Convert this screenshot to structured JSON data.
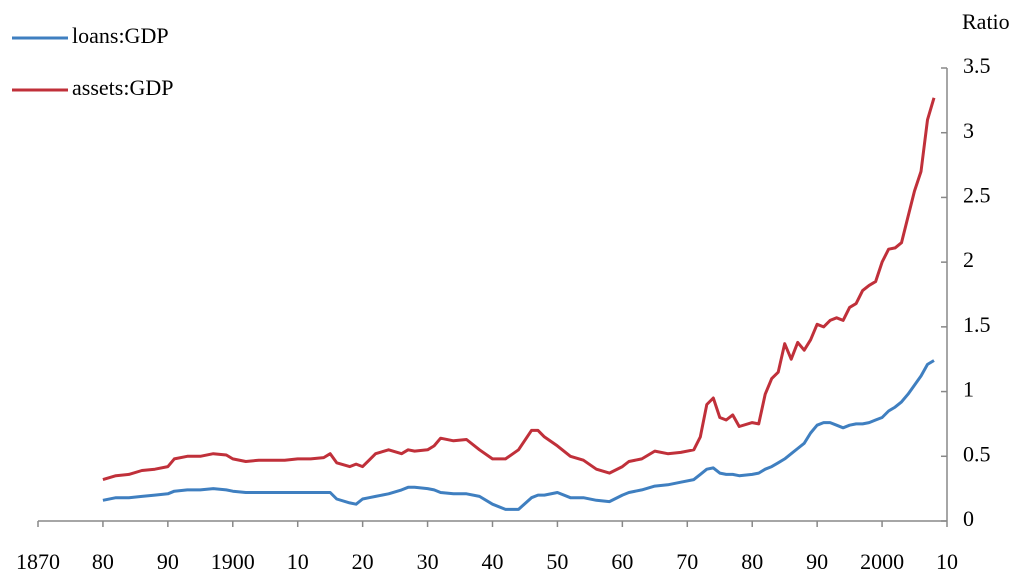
{
  "chart_data": {
    "type": "line",
    "y_axis_label": "Ratio",
    "legend": "top-left",
    "x": [
      1880,
      1882,
      1884,
      1886,
      1888,
      1890,
      1891,
      1893,
      1895,
      1897,
      1899,
      1900,
      1902,
      1904,
      1906,
      1908,
      1910,
      1912,
      1914,
      1915,
      1916,
      1918,
      1919,
      1920,
      1921,
      1922,
      1924,
      1926,
      1927,
      1928,
      1930,
      1931,
      1932,
      1934,
      1936,
      1938,
      1940,
      1942,
      1944,
      1946,
      1947,
      1948,
      1950,
      1952,
      1954,
      1956,
      1958,
      1960,
      1961,
      1963,
      1965,
      1967,
      1969,
      1971,
      1972,
      1973,
      1974,
      1975,
      1976,
      1977,
      1978,
      1980,
      1981,
      1982,
      1983,
      1984,
      1985,
      1986,
      1987,
      1988,
      1989,
      1990,
      1991,
      1992,
      1993,
      1994,
      1995,
      1996,
      1997,
      1998,
      1999,
      2000,
      2001,
      2002,
      2003,
      2004,
      2005,
      2006,
      2007,
      2008
    ],
    "series": [
      {
        "name": "loans:GDP",
        "color": "#3f7fc0",
        "values": [
          0.16,
          0.18,
          0.18,
          0.19,
          0.2,
          0.21,
          0.23,
          0.24,
          0.24,
          0.25,
          0.24,
          0.23,
          0.22,
          0.22,
          0.22,
          0.22,
          0.22,
          0.22,
          0.22,
          0.22,
          0.17,
          0.14,
          0.13,
          0.17,
          0.18,
          0.19,
          0.21,
          0.24,
          0.26,
          0.26,
          0.25,
          0.24,
          0.22,
          0.21,
          0.21,
          0.19,
          0.13,
          0.09,
          0.09,
          0.18,
          0.2,
          0.2,
          0.22,
          0.18,
          0.18,
          0.16,
          0.15,
          0.2,
          0.22,
          0.24,
          0.27,
          0.28,
          0.3,
          0.32,
          0.36,
          0.4,
          0.41,
          0.37,
          0.36,
          0.36,
          0.35,
          0.36,
          0.37,
          0.4,
          0.42,
          0.45,
          0.48,
          0.52,
          0.56,
          0.6,
          0.68,
          0.74,
          0.76,
          0.76,
          0.74,
          0.72,
          0.74,
          0.75,
          0.75,
          0.76,
          0.78,
          0.8,
          0.85,
          0.88,
          0.92,
          0.98,
          1.05,
          1.12,
          1.21,
          1.24
        ]
      },
      {
        "name": "assets:GDP",
        "color": "#c0303a",
        "values": [
          0.32,
          0.35,
          0.36,
          0.39,
          0.4,
          0.42,
          0.48,
          0.5,
          0.5,
          0.52,
          0.51,
          0.48,
          0.46,
          0.47,
          0.47,
          0.47,
          0.48,
          0.48,
          0.49,
          0.52,
          0.45,
          0.42,
          0.44,
          0.42,
          0.47,
          0.52,
          0.55,
          0.52,
          0.55,
          0.54,
          0.55,
          0.58,
          0.64,
          0.62,
          0.63,
          0.55,
          0.48,
          0.48,
          0.55,
          0.7,
          0.7,
          0.65,
          0.58,
          0.5,
          0.47,
          0.4,
          0.37,
          0.42,
          0.46,
          0.48,
          0.54,
          0.52,
          0.53,
          0.55,
          0.65,
          0.9,
          0.95,
          0.8,
          0.78,
          0.82,
          0.73,
          0.76,
          0.75,
          0.98,
          1.1,
          1.15,
          1.37,
          1.25,
          1.38,
          1.32,
          1.4,
          1.52,
          1.5,
          1.55,
          1.57,
          1.55,
          1.65,
          1.68,
          1.78,
          1.82,
          1.85,
          2.0,
          2.1,
          2.11,
          2.15,
          2.35,
          2.55,
          2.7,
          3.1,
          3.27
        ]
      }
    ],
    "xlim": [
      1870,
      2010
    ],
    "xticks": [
      1870,
      {
        "value": 1880,
        "label": "80"
      },
      {
        "value": 1890,
        "label": "90"
      },
      1900,
      {
        "value": 1910,
        "label": "10"
      },
      {
        "value": 1920,
        "label": "20"
      },
      {
        "value": 1930,
        "label": "30"
      },
      {
        "value": 1940,
        "label": "40"
      },
      {
        "value": 1950,
        "label": "50"
      },
      {
        "value": 1960,
        "label": "60"
      },
      {
        "value": 1970,
        "label": "70"
      },
      {
        "value": 1980,
        "label": "80"
      },
      {
        "value": 1990,
        "label": "90"
      },
      2000,
      {
        "value": 2010,
        "label": "10"
      }
    ],
    "ylim": [
      0,
      3.5
    ],
    "yticks": [
      0,
      0.5,
      1,
      1.5,
      2,
      2.5,
      3,
      3.5
    ],
    "grid": false
  }
}
